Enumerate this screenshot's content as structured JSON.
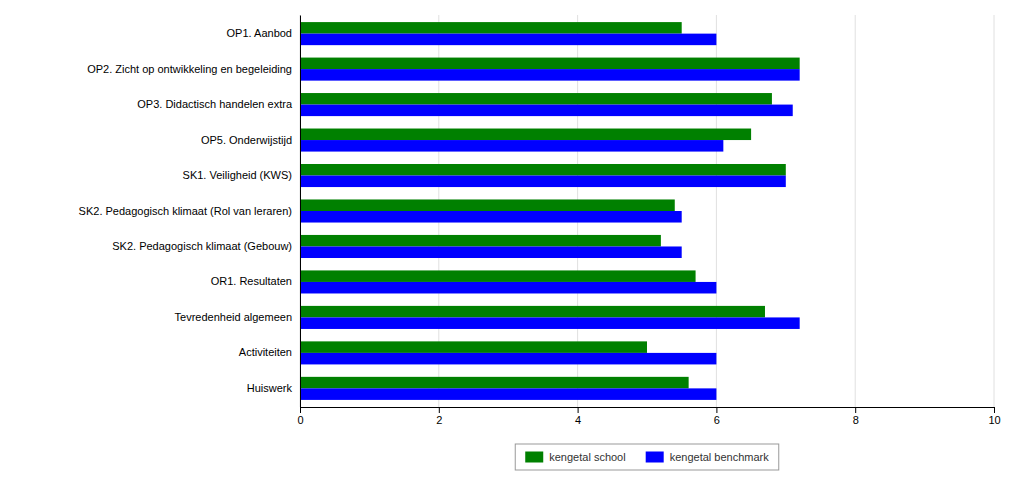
{
  "chart_data": {
    "type": "bar",
    "orientation": "horizontal",
    "categories": [
      "OP1. Aanbod",
      "OP2. Zicht op ontwikkeling en begeleiding",
      "OP3. Didactisch handelen extra",
      "OP5. Onderwijstijd",
      "SK1. Veiligheid (KWS)",
      "SK2. Pedagogisch klimaat (Rol van leraren)",
      "SK2. Pedagogisch klimaat (Gebouw)",
      "OR1. Resultaten",
      "Tevredenheid algemeen",
      "Activiteiten",
      "Huiswerk"
    ],
    "series": [
      {
        "name": "kengetal school",
        "color": "#008000",
        "values": [
          5.5,
          7.2,
          6.8,
          6.5,
          7.0,
          5.4,
          5.2,
          5.7,
          6.7,
          5.0,
          5.6
        ]
      },
      {
        "name": "kengetal benchmark",
        "color": "#0000FF",
        "values": [
          6.0,
          7.2,
          7.1,
          6.1,
          7.0,
          5.5,
          5.5,
          6.0,
          7.2,
          6.0,
          6.0
        ]
      }
    ],
    "xlim": [
      0,
      10
    ],
    "xticks": [
      0,
      2,
      4,
      6,
      8,
      10
    ],
    "grid": true,
    "legend": "bottom"
  }
}
